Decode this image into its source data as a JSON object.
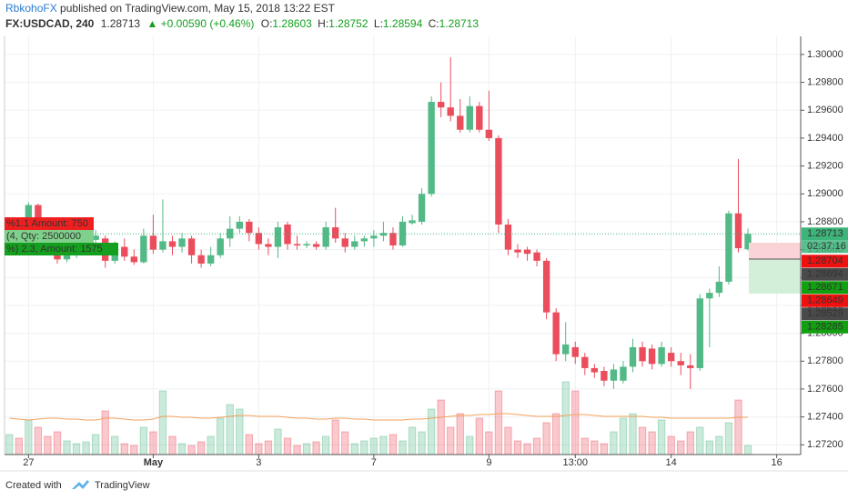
{
  "header": {
    "author": "RbkohoFX",
    "published": "published on TradingView.com, May 15, 2018 13:22 EST",
    "symbol": "FX:USDCAD, 240",
    "last": "1.28713",
    "change": "▲ +0.00590 (+0.46%)",
    "o_label": "O:",
    "o": "1.28603",
    "h_label": "H:",
    "h": "1.28752",
    "l_label": "L:",
    "l": "1.28594",
    "c_label": "C:",
    "c": "1.28713"
  },
  "footer": {
    "created": "Created with",
    "brand": "TradingView"
  },
  "overlays": [
    {
      "text": "%1.1 Amount: 750",
      "color": "#f01f1f"
    },
    {
      "text": "(4, Qty: 2500000",
      "color": "#7fd08a"
    },
    {
      "text": "%) 2.3, Amount: 1575",
      "color": "#14a01e"
    }
  ],
  "chart_data": {
    "type": "candlestick",
    "categories": [
      null,
      null,
      "27",
      null,
      null,
      null,
      null,
      null,
      null,
      null,
      null,
      null,
      null,
      null,
      null,
      "May",
      null,
      null,
      null,
      null,
      null,
      null,
      null,
      null,
      null,
      null,
      "3",
      null,
      null,
      null,
      null,
      null,
      null,
      null,
      null,
      null,
      null,
      null,
      "7",
      null,
      null,
      null,
      null,
      null,
      null,
      null,
      null,
      null,
      null,
      null,
      "9",
      null,
      null,
      null,
      null,
      null,
      null,
      null,
      null,
      "13:00",
      null,
      null,
      null,
      null,
      null,
      null,
      null,
      null,
      null,
      "14",
      null,
      null,
      null,
      null,
      null,
      null,
      null,
      null,
      null,
      null,
      "16",
      null,
      null
    ],
    "open": [
      1.2868,
      1.2872,
      1.2868,
      1.2892,
      1.2872,
      1.2866,
      1.2853,
      1.2856,
      1.286,
      1.2867,
      1.2868,
      1.2852,
      1.2862,
      1.2855,
      1.2851,
      1.287,
      1.286,
      1.2866,
      1.2862,
      1.2868,
      1.2856,
      1.285,
      1.2856,
      1.2868,
      1.2875,
      1.288,
      1.2872,
      1.2864,
      1.2862,
      1.2878,
      1.2864,
      1.2863,
      1.2864,
      1.2862,
      1.2876,
      1.2868,
      1.2862,
      1.2866,
      1.2868,
      1.287,
      1.2872,
      1.2863,
      1.2879,
      1.288,
      1.29,
      1.2966,
      1.2962,
      1.2956,
      1.2946,
      1.2963,
      1.2946,
      1.294,
      1.2878,
      1.286,
      1.286,
      1.2858,
      1.2852,
      1.2815,
      1.2785,
      1.279,
      1.2783,
      1.2775,
      1.2773,
      1.2766,
      1.2766,
      1.2776,
      1.279,
      1.2789,
      1.2778,
      1.2786,
      1.278,
      1.2777,
      1.2775,
      1.2825,
      1.2829,
      1.2837,
      1.2886,
      1.28603,
      null,
      null,
      null,
      null,
      null
    ],
    "high": [
      1.2876,
      1.2878,
      1.2894,
      1.2893,
      1.2876,
      1.2868,
      1.286,
      1.2864,
      1.287,
      1.2874,
      1.287,
      1.2866,
      1.2868,
      1.286,
      1.2875,
      1.2885,
      1.2896,
      1.287,
      1.2872,
      1.287,
      1.286,
      1.2862,
      1.2872,
      1.2884,
      1.2884,
      1.2882,
      1.2876,
      1.2868,
      1.288,
      1.288,
      1.287,
      1.2866,
      1.2866,
      1.288,
      1.289,
      1.2872,
      1.287,
      1.287,
      1.2874,
      1.288,
      1.2876,
      1.2884,
      1.2885,
      1.2904,
      1.297,
      1.298,
      1.2998,
      1.2968,
      1.297,
      1.2966,
      1.2974,
      1.2942,
      1.2882,
      1.2864,
      1.2862,
      1.286,
      1.2854,
      1.2818,
      1.2808,
      1.2794,
      1.2786,
      1.2778,
      1.2776,
      1.2778,
      1.278,
      1.2796,
      1.2794,
      1.2792,
      1.2794,
      1.279,
      1.2786,
      1.2785,
      1.2828,
      1.2832,
      1.2848,
      1.2888,
      1.2925,
      1.28752,
      null,
      null,
      null,
      null,
      null
    ],
    "low": [
      1.2865,
      1.2862,
      1.2866,
      1.2868,
      1.286,
      1.285,
      1.2851,
      1.2854,
      1.2858,
      1.2864,
      1.2847,
      1.285,
      1.2852,
      1.2849,
      1.285,
      1.2857,
      1.2858,
      1.2856,
      1.2858,
      1.285,
      1.2847,
      1.2848,
      1.2854,
      1.2862,
      1.2872,
      1.2866,
      1.286,
      1.2856,
      1.2854,
      1.286,
      1.286,
      1.2861,
      1.286,
      1.286,
      1.2865,
      1.2858,
      1.286,
      1.2862,
      1.2862,
      1.2866,
      1.286,
      1.2862,
      1.2878,
      1.2878,
      1.2898,
      1.2955,
      1.2952,
      1.2944,
      1.2944,
      1.2944,
      1.2938,
      1.2872,
      1.2856,
      1.2854,
      1.2852,
      1.2848,
      1.281,
      1.278,
      1.278,
      1.2778,
      1.277,
      1.2768,
      1.2762,
      1.276,
      1.2764,
      1.2772,
      1.2776,
      1.2774,
      1.2776,
      1.2776,
      1.277,
      1.276,
      1.2773,
      1.279,
      1.2826,
      1.2835,
      1.2858,
      1.28594,
      null,
      null,
      null,
      null,
      null
    ],
    "close": [
      1.2872,
      1.2868,
      1.2892,
      1.2872,
      1.2866,
      1.2853,
      1.2856,
      1.286,
      1.2867,
      1.287,
      1.2852,
      1.2862,
      1.2855,
      1.2851,
      1.287,
      1.286,
      1.2866,
      1.2862,
      1.2868,
      1.2856,
      1.285,
      1.2856,
      1.2868,
      1.2875,
      1.288,
      1.2872,
      1.2864,
      1.2862,
      1.2876,
      1.2864,
      1.2863,
      1.2864,
      1.2862,
      1.2876,
      1.2868,
      1.2862,
      1.2866,
      1.2868,
      1.287,
      1.2872,
      1.2863,
      1.288,
      1.2881,
      1.29,
      1.2966,
      1.2962,
      1.2956,
      1.2946,
      1.2963,
      1.2946,
      1.294,
      1.2878,
      1.286,
      1.2858,
      1.2857,
      1.2852,
      1.2815,
      1.2785,
      1.2792,
      1.2783,
      1.2775,
      1.2772,
      1.2766,
      1.2774,
      1.2776,
      1.279,
      1.278,
      1.2778,
      1.279,
      1.278,
      1.2777,
      1.2775,
      1.2825,
      1.2829,
      1.2837,
      1.2886,
      1.2861,
      1.28713,
      null,
      null,
      null,
      null,
      null
    ],
    "volume": [
      22,
      18,
      38,
      30,
      20,
      25,
      15,
      12,
      14,
      22,
      48,
      20,
      12,
      10,
      30,
      25,
      70,
      20,
      12,
      10,
      14,
      20,
      40,
      55,
      50,
      22,
      12,
      15,
      28,
      18,
      10,
      12,
      14,
      20,
      38,
      25,
      12,
      15,
      18,
      20,
      22,
      15,
      30,
      25,
      50,
      60,
      30,
      45,
      20,
      40,
      25,
      70,
      30,
      15,
      12,
      18,
      35,
      45,
      80,
      70,
      18,
      15,
      12,
      25,
      40,
      45,
      30,
      25,
      38,
      20,
      15,
      25,
      30,
      15,
      20,
      35,
      60,
      10,
      null,
      null,
      null,
      null,
      null
    ],
    "volume_ma": [
      40,
      39,
      38,
      39,
      40,
      40,
      39,
      39,
      38,
      38,
      40,
      40,
      39,
      38,
      38,
      39,
      42,
      42,
      41,
      41,
      40,
      40,
      41,
      42,
      43,
      43,
      42,
      42,
      42,
      41,
      40,
      40,
      39,
      39,
      40,
      40,
      39,
      39,
      38,
      38,
      38,
      38,
      39,
      39,
      40,
      41,
      42,
      43,
      43,
      44,
      44,
      45,
      45,
      44,
      43,
      42,
      42,
      42,
      43,
      44,
      44,
      43,
      42,
      42,
      42,
      42,
      42,
      41,
      41,
      40,
      40,
      40,
      40,
      40,
      40,
      40,
      41,
      41,
      null,
      null,
      null,
      null,
      null
    ],
    "volume_ylim": [
      0,
      100
    ],
    "up_color": "#53b987",
    "down_color": "#eb4d5c",
    "ma_color": "#f5a15a",
    "ylim": [
      1.2713,
      1.3013
    ],
    "yticks": [
      {
        "value": 1.272,
        "label": "1.27200"
      },
      {
        "value": 1.274,
        "label": "1.27400"
      },
      {
        "value": 1.276,
        "label": "1.27600"
      },
      {
        "value": 1.278,
        "label": "1.27800"
      },
      {
        "value": 1.28,
        "label": "1.28000"
      },
      {
        "value": 1.282,
        "label": "1.28200"
      },
      {
        "value": 1.284,
        "label": "1.28400"
      },
      {
        "value": 1.286,
        "label": "1.28600"
      },
      {
        "value": 1.288,
        "label": "1.28800"
      },
      {
        "value": 1.29,
        "label": "1.29000"
      },
      {
        "value": 1.292,
        "label": "1.29200"
      },
      {
        "value": 1.294,
        "label": "1.29400"
      },
      {
        "value": 1.296,
        "label": "1.29600"
      },
      {
        "value": 1.298,
        "label": "1.29800"
      },
      {
        "value": 1.3,
        "label": "1.30000"
      }
    ],
    "grid": true,
    "last_price": 1.28713,
    "last_color": "#3cb47a",
    "countdown": "02:37:16",
    "price_markers": [
      {
        "price": 1.28704,
        "color": "#f01010"
      },
      {
        "price": 1.28694,
        "color": "#4a4a4a"
      },
      {
        "price": 1.28671,
        "color": "#10a010"
      },
      {
        "price": 1.28649,
        "color": "#f01010"
      },
      {
        "price": 1.28529,
        "color": "#4a4a4a"
      },
      {
        "price": 1.28285,
        "color": "#10a010"
      }
    ]
  }
}
